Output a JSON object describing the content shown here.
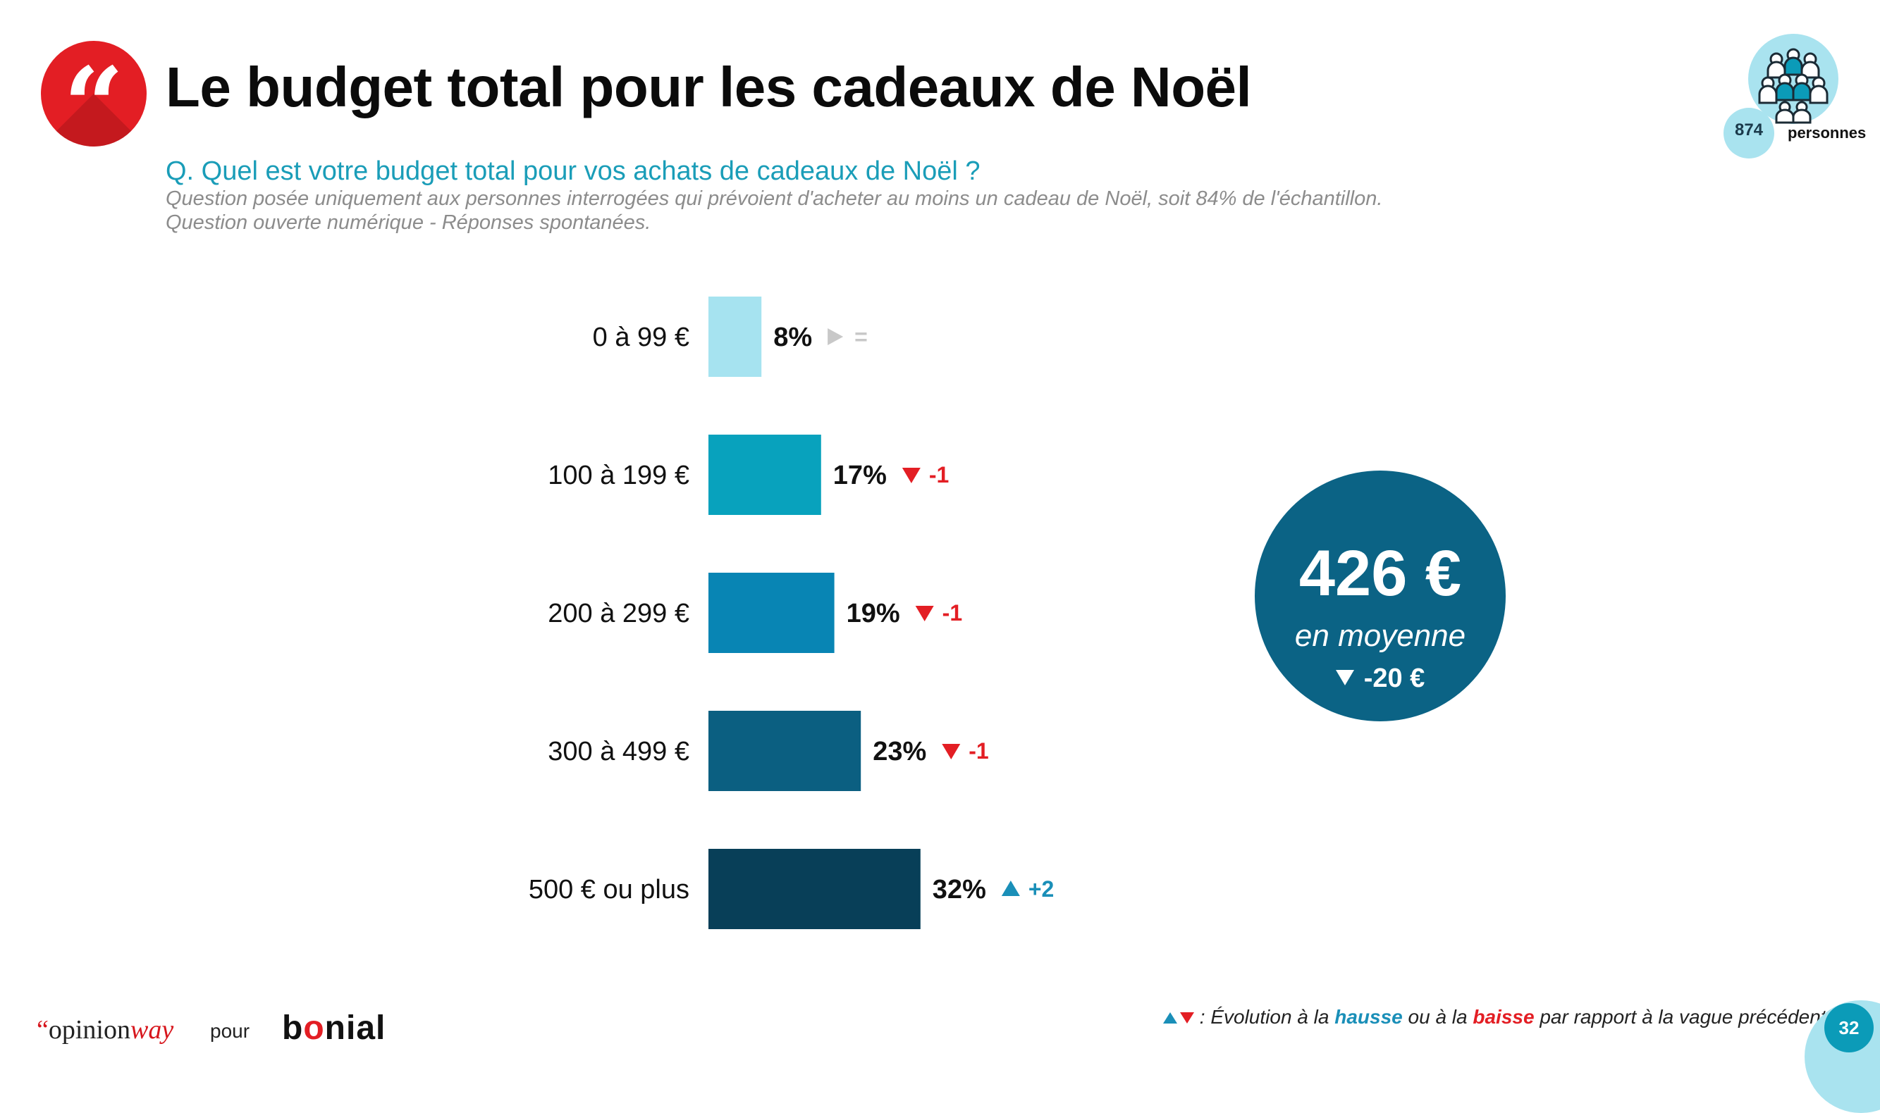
{
  "header": {
    "title": "Le budget total pour les cadeaux de Noël",
    "question": "Q. Quel est votre budget total pour vos achats de cadeaux de Noël ?",
    "note_1": "Question posée uniquement aux personnes interrogées qui prévoient d'acheter au moins un cadeau de Noël, soit 84% de l'échantillon.",
    "note_2": "Question ouverte numérique - Réponses spontanées."
  },
  "sample": {
    "count": "874",
    "label": "personnes"
  },
  "chart_data": {
    "type": "bar",
    "orientation": "horizontal",
    "categories": [
      "0 à 99 €",
      "100 à 199 €",
      "200 à 299 €",
      "300 à 499 €",
      "500 € ou plus"
    ],
    "values": [
      8,
      17,
      19,
      23,
      32
    ],
    "value_labels": [
      "8%",
      "17%",
      "19%",
      "23%",
      "32%"
    ],
    "unit": "%",
    "evolution": [
      {
        "direction": "flat",
        "text": "="
      },
      {
        "direction": "down",
        "text": "-1"
      },
      {
        "direction": "down",
        "text": "-1"
      },
      {
        "direction": "down",
        "text": "-1"
      },
      {
        "direction": "up",
        "text": "+2"
      }
    ],
    "bar_colors": [
      "#a6e3f0",
      "#08a2bd",
      "#0885b4",
      "#0b5f81",
      "#083f58"
    ],
    "evolution_colors": {
      "up": "#1a8fb8",
      "down": "#e31e24",
      "flat": "#c8c8c8"
    },
    "xlim": [
      0,
      100
    ],
    "grid": false,
    "legend": "none"
  },
  "average": {
    "amount": "426 €",
    "label": "en moyenne",
    "evolution": "-20 €"
  },
  "footer": {
    "brand_quote": "“",
    "brand_opinion": "opinion",
    "brand_way": "way",
    "pour": "pour",
    "client_b": "b",
    "client_o": "o",
    "client_rest": "nial",
    "legend_prefix": " : Évolution à la ",
    "legend_up": "hausse",
    "legend_mid": " ou à la ",
    "legend_down": "baisse",
    "legend_suffix": " par rapport à la vague précédente",
    "page": "32"
  },
  "colors": {
    "accent_red": "#e31e24",
    "accent_teal": "#1a9db8",
    "circle_blue": "#0b6385"
  }
}
